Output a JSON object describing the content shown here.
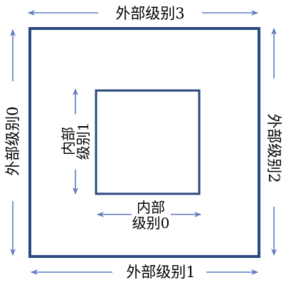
{
  "colors": {
    "box": "#2a4a7f",
    "arrow": "#5b7bc0",
    "text": "#000000",
    "background": "#ffffff"
  },
  "outer": {
    "top_label": "外部级别3",
    "bottom_label": "外部级别1",
    "left_label": "外部级别0",
    "right_label": "外部级别2"
  },
  "inner": {
    "bottom_label_line1": "内部",
    "bottom_label_line2": "级别0",
    "left_label_line1": "内部",
    "left_label_line2": "级别1"
  }
}
